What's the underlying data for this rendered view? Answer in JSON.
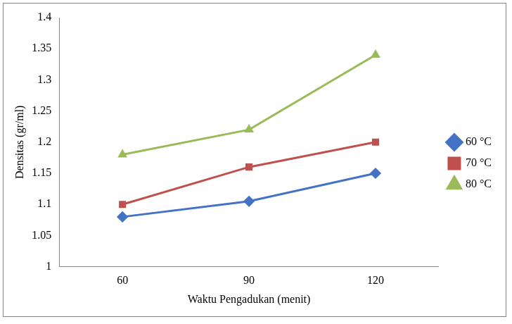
{
  "chart_data": {
    "type": "line",
    "x_label": "Waktu Pengadukan (menit)",
    "y_label": "Densitas (gr/ml)",
    "categories": [
      "60",
      "90",
      "120"
    ],
    "series": [
      {
        "name": "60 °C",
        "color": "#4472c4",
        "marker": "diamond",
        "values": [
          1.08,
          1.105,
          1.15
        ]
      },
      {
        "name": "70 °C",
        "color": "#c0504d",
        "marker": "square",
        "values": [
          1.1,
          1.16,
          1.2
        ]
      },
      {
        "name": "80 °C",
        "color": "#9bbb59",
        "marker": "triangle",
        "values": [
          1.18,
          1.22,
          1.34
        ]
      }
    ],
    "ylim": [
      1,
      1.4
    ],
    "yticks": [
      1,
      1.05,
      1.1,
      1.15,
      1.2,
      1.25,
      1.3,
      1.35,
      1.4
    ],
    "grid": false,
    "legend": "right"
  }
}
